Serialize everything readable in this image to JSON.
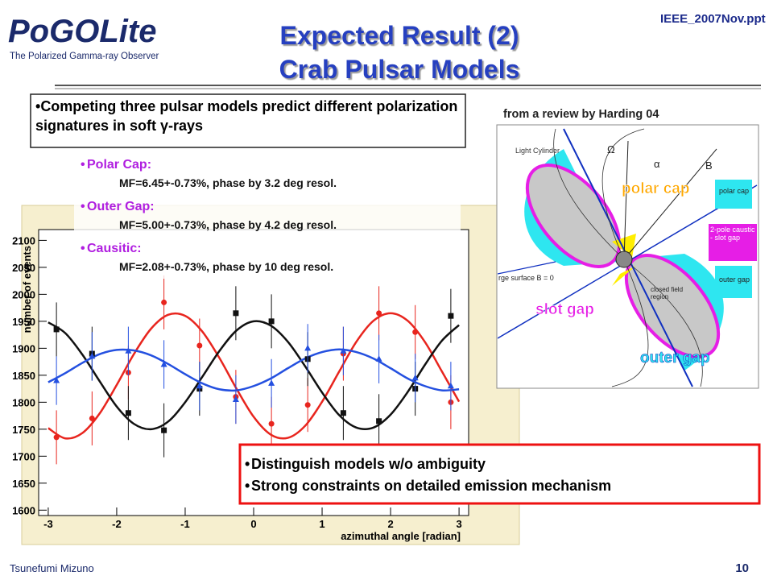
{
  "header": {
    "logo": "PoGOLite",
    "logo_subtitle": "The Polarized Gamma-ray Observer",
    "title_line1": "Expected Result (2)",
    "title_line2": "Crab Pulsar Models",
    "file": "IEEE_2007Nov.ppt"
  },
  "intro": "Competing three pulsar models predict different polarization signatures in soft γ-rays",
  "models": [
    {
      "name": "Polar Cap:",
      "detail": "MF=6.45+-0.73%, phase by 3.2 deg resol."
    },
    {
      "name": "Outer Gap:",
      "detail": "MF=5.00+-0.73%, phase by 4.2 deg resol."
    },
    {
      "name": "Causitic:",
      "detail": "MF=2.08+-0.73%, phase by 10 deg resol."
    }
  ],
  "diagram": {
    "caption": "from a review by Harding 04",
    "light_cylinder": "Light Cylinder",
    "omega": "Ω",
    "alpha": "α",
    "b_field": "B",
    "box_polar": "polar cap",
    "box_caustic": "2-pole caustic - slot gap",
    "box_outer": "outer gap",
    "closed": "closed field region",
    "surface": "rge surface B = 0",
    "label_polar": "polar cap",
    "label_slot": "slot gap",
    "label_outer": "outer gap"
  },
  "conclusions": [
    "Distinguish models w/o ambiguity",
    "Strong constraints on detailed emission mechanism"
  ],
  "footer": {
    "author": "Tsunefumi Mizuno",
    "page": 10
  },
  "chart_data": {
    "type": "line",
    "x_label": "azimuthal angle [radian]",
    "y_label": "number of events",
    "xlim": [
      -3.14,
      3.14
    ],
    "ylim": [
      1590,
      2120
    ],
    "xticks": [
      -3,
      -2,
      -1,
      0,
      1,
      2,
      3
    ],
    "yticks": [
      1600,
      1650,
      1700,
      1750,
      1800,
      1850,
      1900,
      1950,
      2000,
      2050,
      2100
    ],
    "x": [
      -3,
      -2.75,
      -2.5,
      -2.25,
      -2,
      -1.75,
      -1.5,
      -1.25,
      -1,
      -0.75,
      -0.5,
      -0.25,
      0,
      0.25,
      0.5,
      0.75,
      1,
      1.25,
      1.5,
      1.75,
      2,
      2.25,
      2.5,
      2.75,
      3
    ],
    "series": [
      {
        "color": "#e8251e",
        "values": [
          1752,
          1733,
          1743,
          1779,
          1832,
          1889,
          1936,
          1962,
          1960,
          1931,
          1882,
          1825,
          1773,
          1740,
          1734,
          1756,
          1801,
          1857,
          1912,
          1951,
          1965,
          1951,
          1912,
          1857,
          1801
        ]
      },
      {
        "color": "#111111",
        "values": [
          1948,
          1928,
          1888,
          1839,
          1792,
          1760,
          1750,
          1764,
          1800,
          1847,
          1895,
          1933,
          1950,
          1942,
          1912,
          1867,
          1818,
          1776,
          1753,
          1753,
          1777,
          1819,
          1869,
          1914,
          1943
        ]
      },
      {
        "color": "#2450e0",
        "values": [
          1837,
          1854,
          1873,
          1889,
          1897,
          1896,
          1887,
          1871,
          1852,
          1835,
          1824,
          1822,
          1830,
          1844,
          1863,
          1881,
          1893,
          1898,
          1893,
          1881,
          1863,
          1844,
          1830,
          1822,
          1824
        ]
      }
    ],
    "points": {
      "x": [
        -2.88,
        -2.36,
        -1.83,
        -1.31,
        -0.79,
        -0.26,
        0.26,
        0.79,
        1.31,
        1.83,
        2.36,
        2.88
      ],
      "series": [
        {
          "color": "#e8251e",
          "marker": "circle",
          "values": [
            1735,
            1770,
            1855,
            1985,
            1905,
            1810,
            1760,
            1795,
            1890,
            1965,
            1930,
            1800
          ],
          "errors": [
            50,
            50,
            50,
            50,
            50,
            50,
            50,
            50,
            50,
            50,
            50,
            50
          ]
        },
        {
          "color": "#111111",
          "marker": "square",
          "values": [
            1935,
            1890,
            1780,
            1748,
            1825,
            1965,
            1950,
            1880,
            1780,
            1765,
            1825,
            1960
          ],
          "errors": [
            50,
            50,
            50,
            50,
            50,
            50,
            50,
            50,
            50,
            50,
            50,
            50
          ]
        },
        {
          "color": "#2450e0",
          "marker": "triangle",
          "values": [
            1840,
            1885,
            1895,
            1870,
            1830,
            1805,
            1835,
            1900,
            1895,
            1880,
            1845,
            1830
          ],
          "errors": [
            45,
            45,
            45,
            45,
            45,
            45,
            45,
            45,
            45,
            45,
            45,
            45
          ]
        }
      ]
    }
  }
}
